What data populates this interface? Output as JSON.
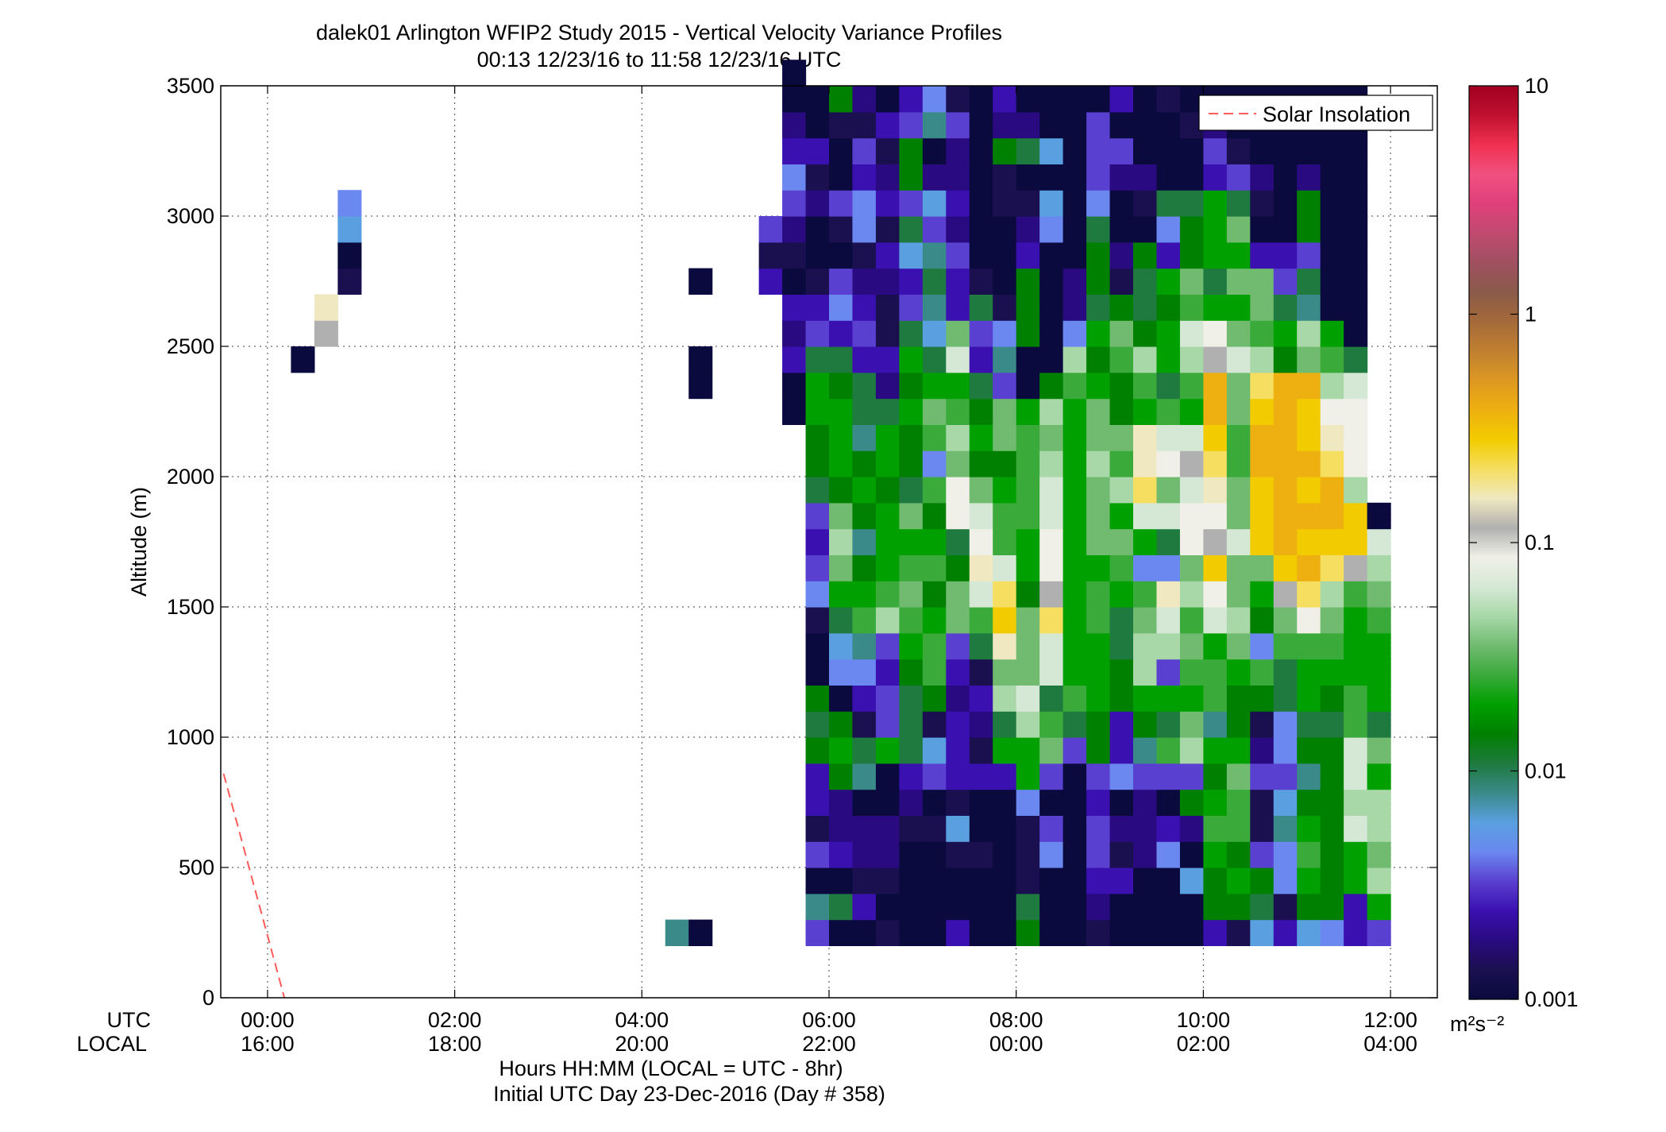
{
  "chart_data": {
    "type": "heatmap",
    "title": "dalek01 Arlington WFIP2 Study 2015 - Vertical Velocity Variance Profiles",
    "subtitle": "00:13 12/23/16 to 11:58 12/23/16  UTC",
    "ylabel": "Altitude (m)",
    "xlabel": "Hours HH:MM  (LOCAL = UTC - 8hr)",
    "xlabel2": "Initial UTC Day 23-Dec-2016 (Day # 358)",
    "x_row_labels": [
      "UTC",
      "LOCAL"
    ],
    "xlim_hours": [
      -0.5,
      12.5
    ],
    "ylim": [
      0,
      3500
    ],
    "grid": true,
    "y_ticks": [
      "0",
      "500",
      "1000",
      "1500",
      "2000",
      "2500",
      "3000",
      "3500"
    ],
    "x_ticks_utc": [
      "00:00",
      "02:00",
      "04:00",
      "06:00",
      "08:00",
      "10:00",
      "12:00"
    ],
    "x_ticks_local": [
      "16:00",
      "18:00",
      "20:00",
      "22:00",
      "00:00",
      "02:00",
      "04:00"
    ],
    "legend": {
      "placement": "top-right",
      "entries": [
        {
          "label": "Solar Insolation",
          "style": "dashed",
          "color": "#ff5a5a"
        }
      ]
    },
    "solar_insolation": {
      "x_hours": [
        -0.47,
        0.18
      ],
      "y": [
        860,
        0
      ]
    },
    "colorbar": {
      "scale": "log",
      "range": [
        0.001,
        10
      ],
      "tick_labels": [
        "0.001",
        "0.01",
        "0.1",
        "1",
        "10"
      ],
      "units": "m²s⁻²",
      "palette": [
        "#0a0a3e",
        "#1a1050",
        "#2a0a80",
        "#3a10b0",
        "#5a40d0",
        "#6a88f0",
        "#5aa0e0",
        "#3a8a8a",
        "#1e7a3e",
        "#008000",
        "#00a000",
        "#3aaa3a",
        "#70bb70",
        "#a8d8a8",
        "#d5e8d5",
        "#f0f0e8",
        "#b0b0b0",
        "#f0e8c0",
        "#f5de60",
        "#f2cc00",
        "#eeb010",
        "#dd9822",
        "#c08030",
        "#a56a3a",
        "#8a5a4a",
        "#a05060",
        "#c04a70",
        "#e0407a",
        "#f05080",
        "#f03050",
        "#c01030",
        "#a00020"
      ]
    },
    "dt_hours": 0.25,
    "dz_m": 100,
    "columns": [
      {
        "t": 0.25,
        "z0": 2400,
        "v": [
          0
        ]
      },
      {
        "t": 0.5,
        "z0": 2500,
        "v": [
          16,
          17
        ]
      },
      {
        "t": 0.75,
        "z0": 2700,
        "v": [
          1,
          0,
          6,
          5
        ]
      },
      {
        "t": 4.25,
        "z0": 200,
        "v": [
          7
        ]
      },
      {
        "t": 4.5,
        "z0": 200,
        "v": [
          0
        ]
      },
      {
        "t": 4.5,
        "z0": 2300,
        "v": [
          0,
          0
        ]
      },
      {
        "t": 4.5,
        "z0": 2700,
        "v": [
          0
        ]
      },
      {
        "t": 5.25,
        "z0": 2700,
        "v": [
          3,
          1,
          4
        ]
      },
      {
        "t": 5.5,
        "z0": 2200,
        "v": [
          0,
          0,
          3,
          2,
          3,
          0,
          1,
          2,
          4,
          5,
          3,
          2,
          0,
          0
        ]
      },
      {
        "t": 5.75,
        "z0": 200,
        "v": [
          4,
          7,
          0,
          4,
          1,
          3,
          3,
          9,
          8,
          9,
          0,
          0,
          1,
          5,
          4,
          3,
          4,
          8,
          9,
          9,
          10,
          10,
          8,
          4,
          3,
          1,
          0,
          0,
          2,
          1,
          3,
          0,
          0
        ]
      },
      {
        "t": 6.0,
        "z0": 200,
        "v": [
          0,
          8,
          0,
          3,
          2,
          2,
          9,
          10,
          9,
          0,
          5,
          6,
          8,
          10,
          12,
          13,
          12,
          9,
          10,
          10,
          10,
          9,
          8,
          3,
          5,
          4,
          0,
          1,
          4,
          0,
          0,
          1,
          9
        ]
      },
      {
        "t": 6.25,
        "z0": 200,
        "v": [
          0,
          3,
          1,
          2,
          2,
          0,
          7,
          8,
          1,
          3,
          5,
          7,
          11,
          10,
          9,
          7,
          9,
          10,
          9,
          7,
          8,
          8,
          3,
          4,
          3,
          2,
          1,
          5,
          5,
          3,
          4,
          1,
          2
        ]
      },
      {
        "t": 6.5,
        "z0": 200,
        "v": [
          1,
          0,
          1,
          2,
          2,
          0,
          0,
          10,
          4,
          4,
          3,
          4,
          13,
          11,
          10,
          10,
          10,
          9,
          10,
          10,
          8,
          2,
          3,
          1,
          1,
          2,
          3,
          1,
          3,
          2,
          1,
          3,
          0
        ]
      },
      {
        "t": 6.75,
        "z0": 200,
        "v": [
          0,
          0,
          0,
          0,
          1,
          2,
          3,
          8,
          8,
          8,
          9,
          10,
          11,
          12,
          11,
          10,
          12,
          8,
          9,
          9,
          10,
          9,
          10,
          8,
          4,
          3,
          6,
          8,
          4,
          9,
          9,
          4,
          3
        ]
      },
      {
        "t": 7.0,
        "z0": 200,
        "v": [
          0,
          0,
          0,
          0,
          1,
          0,
          4,
          6,
          1,
          9,
          11,
          11,
          10,
          9,
          11,
          10,
          9,
          11,
          5,
          11,
          12,
          10,
          8,
          6,
          7,
          8,
          7,
          4,
          6,
          2,
          0,
          7,
          5
        ]
      },
      {
        "t": 7.25,
        "z0": 200,
        "v": [
          3,
          0,
          0,
          1,
          6,
          1,
          3,
          3,
          3,
          2,
          3,
          4,
          12,
          12,
          9,
          8,
          15,
          15,
          12,
          13,
          11,
          10,
          14,
          12,
          3,
          3,
          4,
          2,
          3,
          2,
          2,
          4,
          1
        ]
      },
      {
        "t": 7.5,
        "z0": 200,
        "v": [
          0,
          0,
          0,
          1,
          0,
          0,
          3,
          1,
          2,
          3,
          1,
          8,
          11,
          14,
          17,
          15,
          14,
          12,
          9,
          10,
          9,
          8,
          3,
          4,
          8,
          1,
          0,
          0,
          0,
          0,
          0,
          0,
          0
        ]
      },
      {
        "t": 7.75,
        "z0": 200,
        "v": [
          0,
          0,
          0,
          0,
          0,
          0,
          3,
          10,
          8,
          13,
          12,
          17,
          19,
          18,
          14,
          11,
          11,
          10,
          9,
          12,
          12,
          4,
          7,
          5,
          1,
          0,
          0,
          0,
          1,
          1,
          9,
          2,
          3
        ]
      },
      {
        "t": 8.0,
        "z0": 200,
        "v": [
          9,
          8,
          1,
          1,
          1,
          5,
          10,
          10,
          13,
          14,
          12,
          12,
          12,
          9,
          10,
          10,
          11,
          11,
          11,
          11,
          10,
          0,
          0,
          9,
          9,
          9,
          3,
          2,
          1,
          0,
          8,
          2,
          0
        ]
      },
      {
        "t": 8.25,
        "z0": 200,
        "v": [
          0,
          0,
          0,
          5,
          4,
          0,
          4,
          12,
          11,
          8,
          14,
          14,
          18,
          16,
          15,
          15,
          14,
          14,
          13,
          12,
          13,
          9,
          0,
          0,
          0,
          0,
          0,
          5,
          6,
          0,
          6,
          0,
          0
        ]
      },
      {
        "t": 8.5,
        "z0": 200,
        "v": [
          0,
          0,
          0,
          0,
          0,
          0,
          0,
          4,
          8,
          11,
          10,
          10,
          10,
          10,
          10,
          10,
          10,
          10,
          10,
          10,
          10,
          11,
          13,
          5,
          2,
          2,
          0,
          0,
          0,
          0,
          0,
          0,
          0
        ]
      },
      {
        "t": 8.75,
        "z0": 200,
        "v": [
          1,
          2,
          3,
          4,
          4,
          3,
          4,
          9,
          9,
          10,
          10,
          10,
          11,
          11,
          10,
          12,
          12,
          12,
          13,
          12,
          12,
          10,
          9,
          10,
          8,
          9,
          9,
          8,
          5,
          4,
          4,
          4,
          0
        ]
      },
      {
        "t": 9.0,
        "z0": 200,
        "v": [
          0,
          0,
          3,
          1,
          2,
          0,
          5,
          3,
          3,
          9,
          9,
          8,
          8,
          10,
          11,
          12,
          10,
          13,
          11,
          12,
          9,
          9,
          11,
          12,
          9,
          1,
          2,
          0,
          0,
          2,
          4,
          0,
          3
        ]
      },
      {
        "t": 9.25,
        "z0": 200,
        "v": [
          0,
          0,
          0,
          2,
          2,
          2,
          4,
          7,
          9,
          10,
          13,
          13,
          12,
          11,
          5,
          10,
          14,
          18,
          17,
          17,
          10,
          11,
          13,
          9,
          8,
          8,
          9,
          0,
          1,
          2,
          0,
          0,
          0
        ]
      },
      {
        "t": 9.5,
        "z0": 200,
        "v": [
          0,
          0,
          0,
          5,
          3,
          0,
          4,
          11,
          8,
          10,
          4,
          13,
          14,
          17,
          5,
          8,
          14,
          12,
          15,
          14,
          11,
          8,
          10,
          10,
          9,
          10,
          3,
          5,
          8,
          0,
          0,
          0,
          1
        ]
      },
      {
        "t": 9.75,
        "z0": 200,
        "v": [
          0,
          0,
          6,
          0,
          2,
          9,
          4,
          13,
          12,
          10,
          11,
          12,
          11,
          13,
          12,
          15,
          15,
          14,
          16,
          14,
          10,
          11,
          13,
          14,
          11,
          12,
          9,
          9,
          8,
          0,
          0,
          1,
          0
        ]
      },
      {
        "t": 10.0,
        "z0": 200,
        "v": [
          3,
          9,
          9,
          10,
          11,
          10,
          9,
          10,
          7,
          11,
          11,
          10,
          14,
          15,
          19,
          16,
          15,
          17,
          18,
          19,
          20,
          20,
          16,
          15,
          10,
          8,
          10,
          10,
          10,
          3,
          4,
          2,
          0
        ]
      },
      {
        "t": 10.25,
        "z0": 200,
        "v": [
          1,
          9,
          10,
          9,
          11,
          11,
          12,
          10,
          9,
          9,
          10,
          12,
          13,
          12,
          12,
          14,
          12,
          12,
          11,
          11,
          12,
          12,
          14,
          12,
          10,
          12,
          10,
          12,
          8,
          4,
          1,
          0,
          0
        ]
      },
      {
        "t": 10.5,
        "z0": 200,
        "v": [
          6,
          8,
          9,
          4,
          1,
          1,
          4,
          2,
          1,
          9,
          11,
          5,
          9,
          10,
          12,
          19,
          19,
          19,
          20,
          20,
          19,
          18,
          13,
          11,
          12,
          12,
          3,
          0,
          1,
          2,
          0,
          0,
          0
        ]
      },
      {
        "t": 10.75,
        "z0": 200,
        "v": [
          3,
          1,
          5,
          5,
          7,
          6,
          4,
          5,
          5,
          8,
          8,
          11,
          12,
          16,
          19,
          20,
          20,
          20,
          20,
          20,
          20,
          20,
          9,
          10,
          8,
          4,
          3,
          0,
          0,
          0,
          0,
          0,
          0
        ]
      },
      {
        "t": 11.0,
        "z0": 200,
        "v": [
          6,
          9,
          10,
          11,
          10,
          9,
          7,
          9,
          8,
          10,
          10,
          11,
          15,
          18,
          20,
          19,
          20,
          19,
          20,
          19,
          19,
          20,
          12,
          13,
          7,
          8,
          4,
          9,
          9,
          2,
          0,
          0,
          0
        ]
      },
      {
        "t": 11.25,
        "z0": 200,
        "v": [
          5,
          9,
          9,
          9,
          9,
          9,
          9,
          9,
          8,
          9,
          10,
          11,
          12,
          13,
          18,
          19,
          20,
          20,
          18,
          17,
          15,
          13,
          11,
          10,
          0,
          0,
          0,
          0,
          0,
          0,
          0,
          0,
          0
        ]
      },
      {
        "t": 11.5,
        "z0": 200,
        "v": [
          3,
          3,
          10,
          10,
          14,
          13,
          14,
          14,
          11,
          11,
          10,
          10,
          10,
          11,
          16,
          19,
          19,
          13,
          15,
          15,
          15,
          14,
          8,
          0,
          0,
          0,
          0,
          0,
          0,
          0,
          0,
          0,
          0
        ]
      },
      {
        "t": 11.75,
        "z0": 200,
        "v": [
          4,
          10,
          13,
          12,
          13,
          13,
          10,
          12,
          8,
          10,
          10,
          10,
          11,
          12,
          13,
          14,
          0
        ]
      }
    ]
  }
}
